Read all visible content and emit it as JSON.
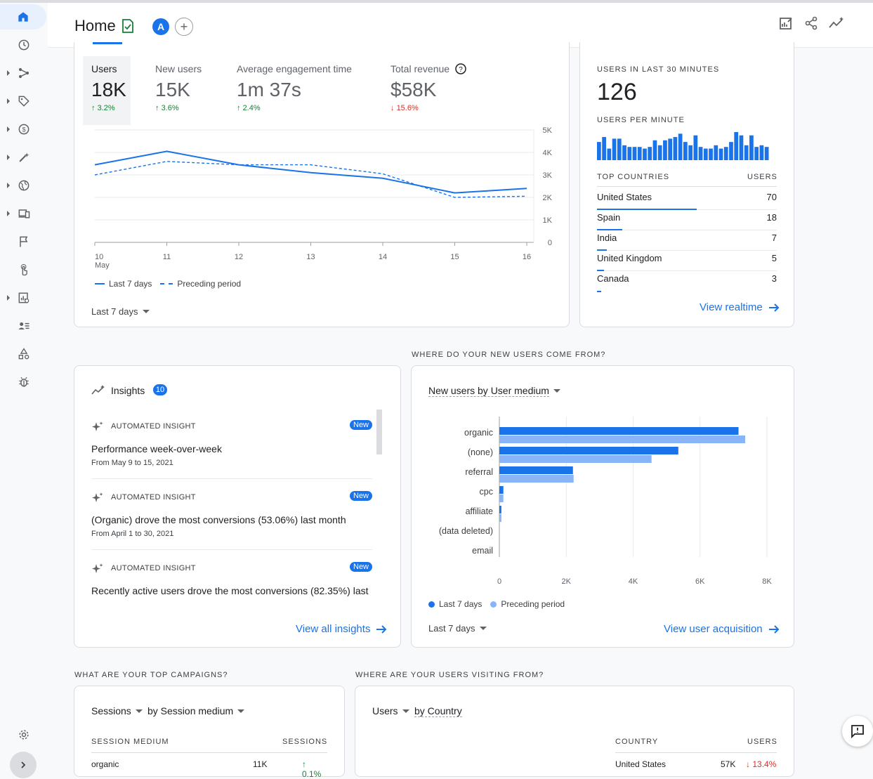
{
  "header": {
    "title": "Home",
    "avatar_letter": "A"
  },
  "overview": {
    "metrics": [
      {
        "label": "Users",
        "value": "18K",
        "change": "3.2%",
        "direction": "up"
      },
      {
        "label": "New users",
        "value": "15K",
        "change": "3.6%",
        "direction": "up"
      },
      {
        "label": "Average engagement time",
        "value": "1m 37s",
        "change": "2.4%",
        "direction": "up"
      },
      {
        "label": "Total revenue",
        "value": "$58K",
        "change": "15.6%",
        "direction": "down"
      }
    ],
    "range_label": "Last 7 days",
    "chart_legend": {
      "current": "Last 7 days",
      "previous": "Preceding period"
    },
    "x_month": "May"
  },
  "realtime": {
    "title": "USERS IN LAST 30 MINUTES",
    "value": "126",
    "per_minute_label": "USERS PER MINUTE",
    "countries_header": "TOP COUNTRIES",
    "users_header": "USERS",
    "countries": [
      {
        "name": "United States",
        "users": "70"
      },
      {
        "name": "Spain",
        "users": "18"
      },
      {
        "name": "India",
        "users": "7"
      },
      {
        "name": "United Kingdom",
        "users": "5"
      },
      {
        "name": "Canada",
        "users": "3"
      }
    ],
    "link": "View realtime"
  },
  "insights": {
    "title": "Insights",
    "count": "10",
    "items": [
      {
        "tag": "AUTOMATED INSIGHT",
        "badge": "New",
        "text": "Performance week-over-week",
        "sub": "From May 9 to 15, 2021"
      },
      {
        "tag": "AUTOMATED INSIGHT",
        "badge": "New",
        "text": "(Organic) drove the most conversions (53.06%) last month",
        "sub": "From April 1 to 30, 2021"
      },
      {
        "tag": "AUTOMATED INSIGHT",
        "badge": "New",
        "text": "Recently active users drove the most conversions (82.35%) last",
        "sub": ""
      }
    ],
    "link": "View all insights"
  },
  "acquisition": {
    "section_title": "WHERE DO YOUR NEW USERS COME FROM?",
    "selector": "New users by User medium",
    "range_label": "Last 7 days",
    "link": "View user acquisition",
    "legend": {
      "current": "Last 7 days",
      "previous": "Preceding period"
    }
  },
  "campaigns": {
    "section_title": "WHAT ARE YOUR TOP CAMPAIGNS?",
    "metric_selector": "Sessions",
    "dimension_selector": "by Session medium",
    "col1": "SESSION MEDIUM",
    "col2": "SESSIONS",
    "first_row": {
      "name": "organic",
      "value": "11K",
      "change": "0.1%"
    }
  },
  "visiting": {
    "section_title": "WHERE ARE YOUR USERS VISITING FROM?",
    "metric_selector": "Users",
    "dimension_selector": "by Country",
    "col1": "COUNTRY",
    "col2": "USERS",
    "first_row": {
      "name": "United States",
      "value": "57K",
      "change": "13.4%"
    }
  },
  "chart_data": [
    {
      "type": "line",
      "x": [
        "10",
        "11",
        "12",
        "13",
        "14",
        "15",
        "16"
      ],
      "series": [
        {
          "name": "Last 7 days",
          "values": [
            3450,
            4050,
            3450,
            3100,
            2850,
            2200,
            2400
          ]
        },
        {
          "name": "Preceding period",
          "values": [
            3000,
            3600,
            3450,
            3450,
            3050,
            2000,
            2050
          ]
        }
      ],
      "yticks": [
        "0",
        "1K",
        "2K",
        "3K",
        "4K",
        "5K"
      ],
      "ylim": [
        0,
        5000
      ]
    },
    {
      "type": "bar",
      "categories": [
        "organic",
        "(none)",
        "referral",
        "cpc",
        "affiliate",
        "(data deleted)",
        "email"
      ],
      "series": [
        {
          "name": "Last 7 days",
          "values": [
            7150,
            5350,
            2200,
            120,
            60,
            0,
            0
          ]
        },
        {
          "name": "Preceding period",
          "values": [
            7350,
            4550,
            2220,
            120,
            60,
            0,
            0
          ]
        }
      ],
      "xticks": [
        "0",
        "2K",
        "4K",
        "6K",
        "8K"
      ],
      "xlim": [
        0,
        8000
      ]
    },
    {
      "type": "bar",
      "title": "USERS PER MINUTE",
      "values": [
        22,
        28,
        14,
        26,
        26,
        18,
        16,
        16,
        16,
        14,
        16,
        24,
        18,
        24,
        26,
        28,
        32,
        22,
        18,
        30,
        16,
        14,
        14,
        18,
        14,
        16,
        22,
        34,
        30,
        18,
        30,
        16,
        18,
        16
      ]
    }
  ],
  "colors": {
    "primary": "#1a73e8",
    "light_series": "#8ab4f8",
    "up": "#188038",
    "down": "#d93025"
  }
}
